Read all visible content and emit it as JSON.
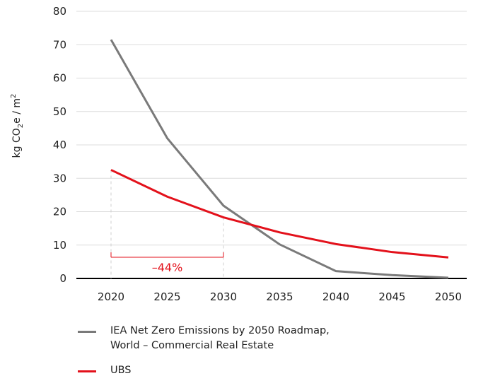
{
  "chart_data": {
    "type": "line",
    "ylabel": "kg CO",
    "ylabel_sub": "2",
    "ylabel_rest": "e / m",
    "ylabel_sup": "2",
    "x": [
      2020,
      2025,
      2030,
      2035,
      2040,
      2045,
      2050
    ],
    "xlim": [
      2020,
      2050
    ],
    "ylim": [
      0,
      80
    ],
    "yticks": [
      0,
      10,
      20,
      30,
      40,
      50,
      60,
      70,
      80
    ],
    "grid": true,
    "legend_position": "bottom",
    "series": [
      {
        "name": "IEA Net Zero Emissions by 2050 Roadmap,\nWorld – Commercial Real Estate",
        "color": "#7a7a7a",
        "values": [
          71.5,
          42,
          21.8,
          10.2,
          2.2,
          1.0,
          0.2
        ]
      },
      {
        "name": "UBS",
        "color": "#e3111b",
        "values": [
          32.5,
          24.5,
          18.3,
          13.8,
          10.3,
          7.9,
          6.3
        ]
      }
    ],
    "annotation": {
      "text": "–44%",
      "from_x": 2020,
      "to_x": 2030,
      "color": "#e3111b"
    }
  }
}
